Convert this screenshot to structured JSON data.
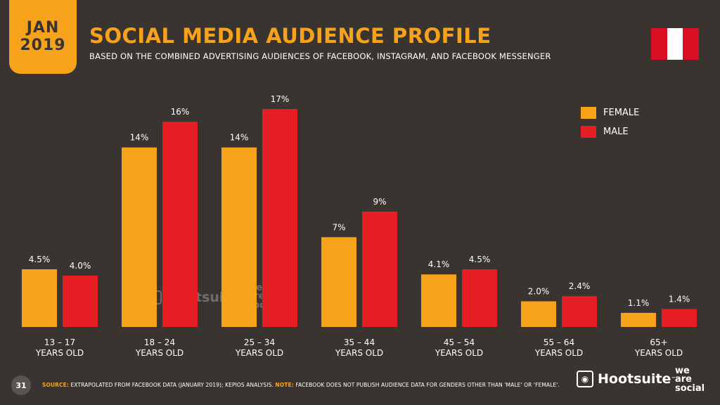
{
  "header": {
    "date_month": "JAN",
    "date_year": "2019",
    "title": "SOCIAL MEDIA AUDIENCE PROFILE",
    "subtitle": "BASED ON THE COMBINED ADVERTISING AUDIENCES OF FACEBOOK, INSTAGRAM, AND FACEBOOK MESSENGER"
  },
  "colors": {
    "background": "#3a3431",
    "female": "#f7a21b",
    "male": "#e81e25",
    "accent": "#f7a21b"
  },
  "flag": {
    "name": "peru-flag-icon"
  },
  "chart_data": {
    "type": "bar",
    "categories": [
      [
        "13 – 17",
        "YEARS OLD"
      ],
      [
        "18 – 24",
        "YEARS OLD"
      ],
      [
        "25 – 34",
        "YEARS OLD"
      ],
      [
        "35 – 44",
        "YEARS OLD"
      ],
      [
        "45 – 54",
        "YEARS OLD"
      ],
      [
        "55 – 64",
        "YEARS OLD"
      ],
      [
        "65+",
        "YEARS OLD"
      ]
    ],
    "series": [
      {
        "name": "FEMALE",
        "color": "#f7a21b",
        "values": [
          4.5,
          14,
          14,
          7,
          4.1,
          2.0,
          1.1
        ],
        "labels": [
          "4.5%",
          "14%",
          "14%",
          "7%",
          "4.1%",
          "2.0%",
          "1.1%"
        ]
      },
      {
        "name": "MALE",
        "color": "#e81e25",
        "values": [
          4.0,
          16,
          17,
          9,
          4.5,
          2.4,
          1.4
        ],
        "labels": [
          "4.0%",
          "16%",
          "17%",
          "9%",
          "4.5%",
          "2.4%",
          "1.4%"
        ]
      }
    ],
    "ylim": [
      0,
      17
    ],
    "grid": false,
    "legend": "top-right"
  },
  "footer": {
    "page_number": "31",
    "source_label": "SOURCE:",
    "source_text": "EXTRAPOLATED FROM FACEBOOK DATA (JANUARY 2019); KEPIOS ANALYSIS.",
    "note_label": "NOTE:",
    "note_text": "FACEBOOK DOES NOT PUBLISH AUDIENCE DATA FOR GENDERS OTHER THAN 'MALE' OR 'FEMALE'.",
    "brand": "Hootsuite",
    "brand_tm": "™",
    "partner_lines": [
      "we",
      "are",
      "social"
    ]
  },
  "watermark": {
    "brand": "Hootsuite",
    "partner_lines": [
      "we",
      "are",
      "social"
    ]
  }
}
